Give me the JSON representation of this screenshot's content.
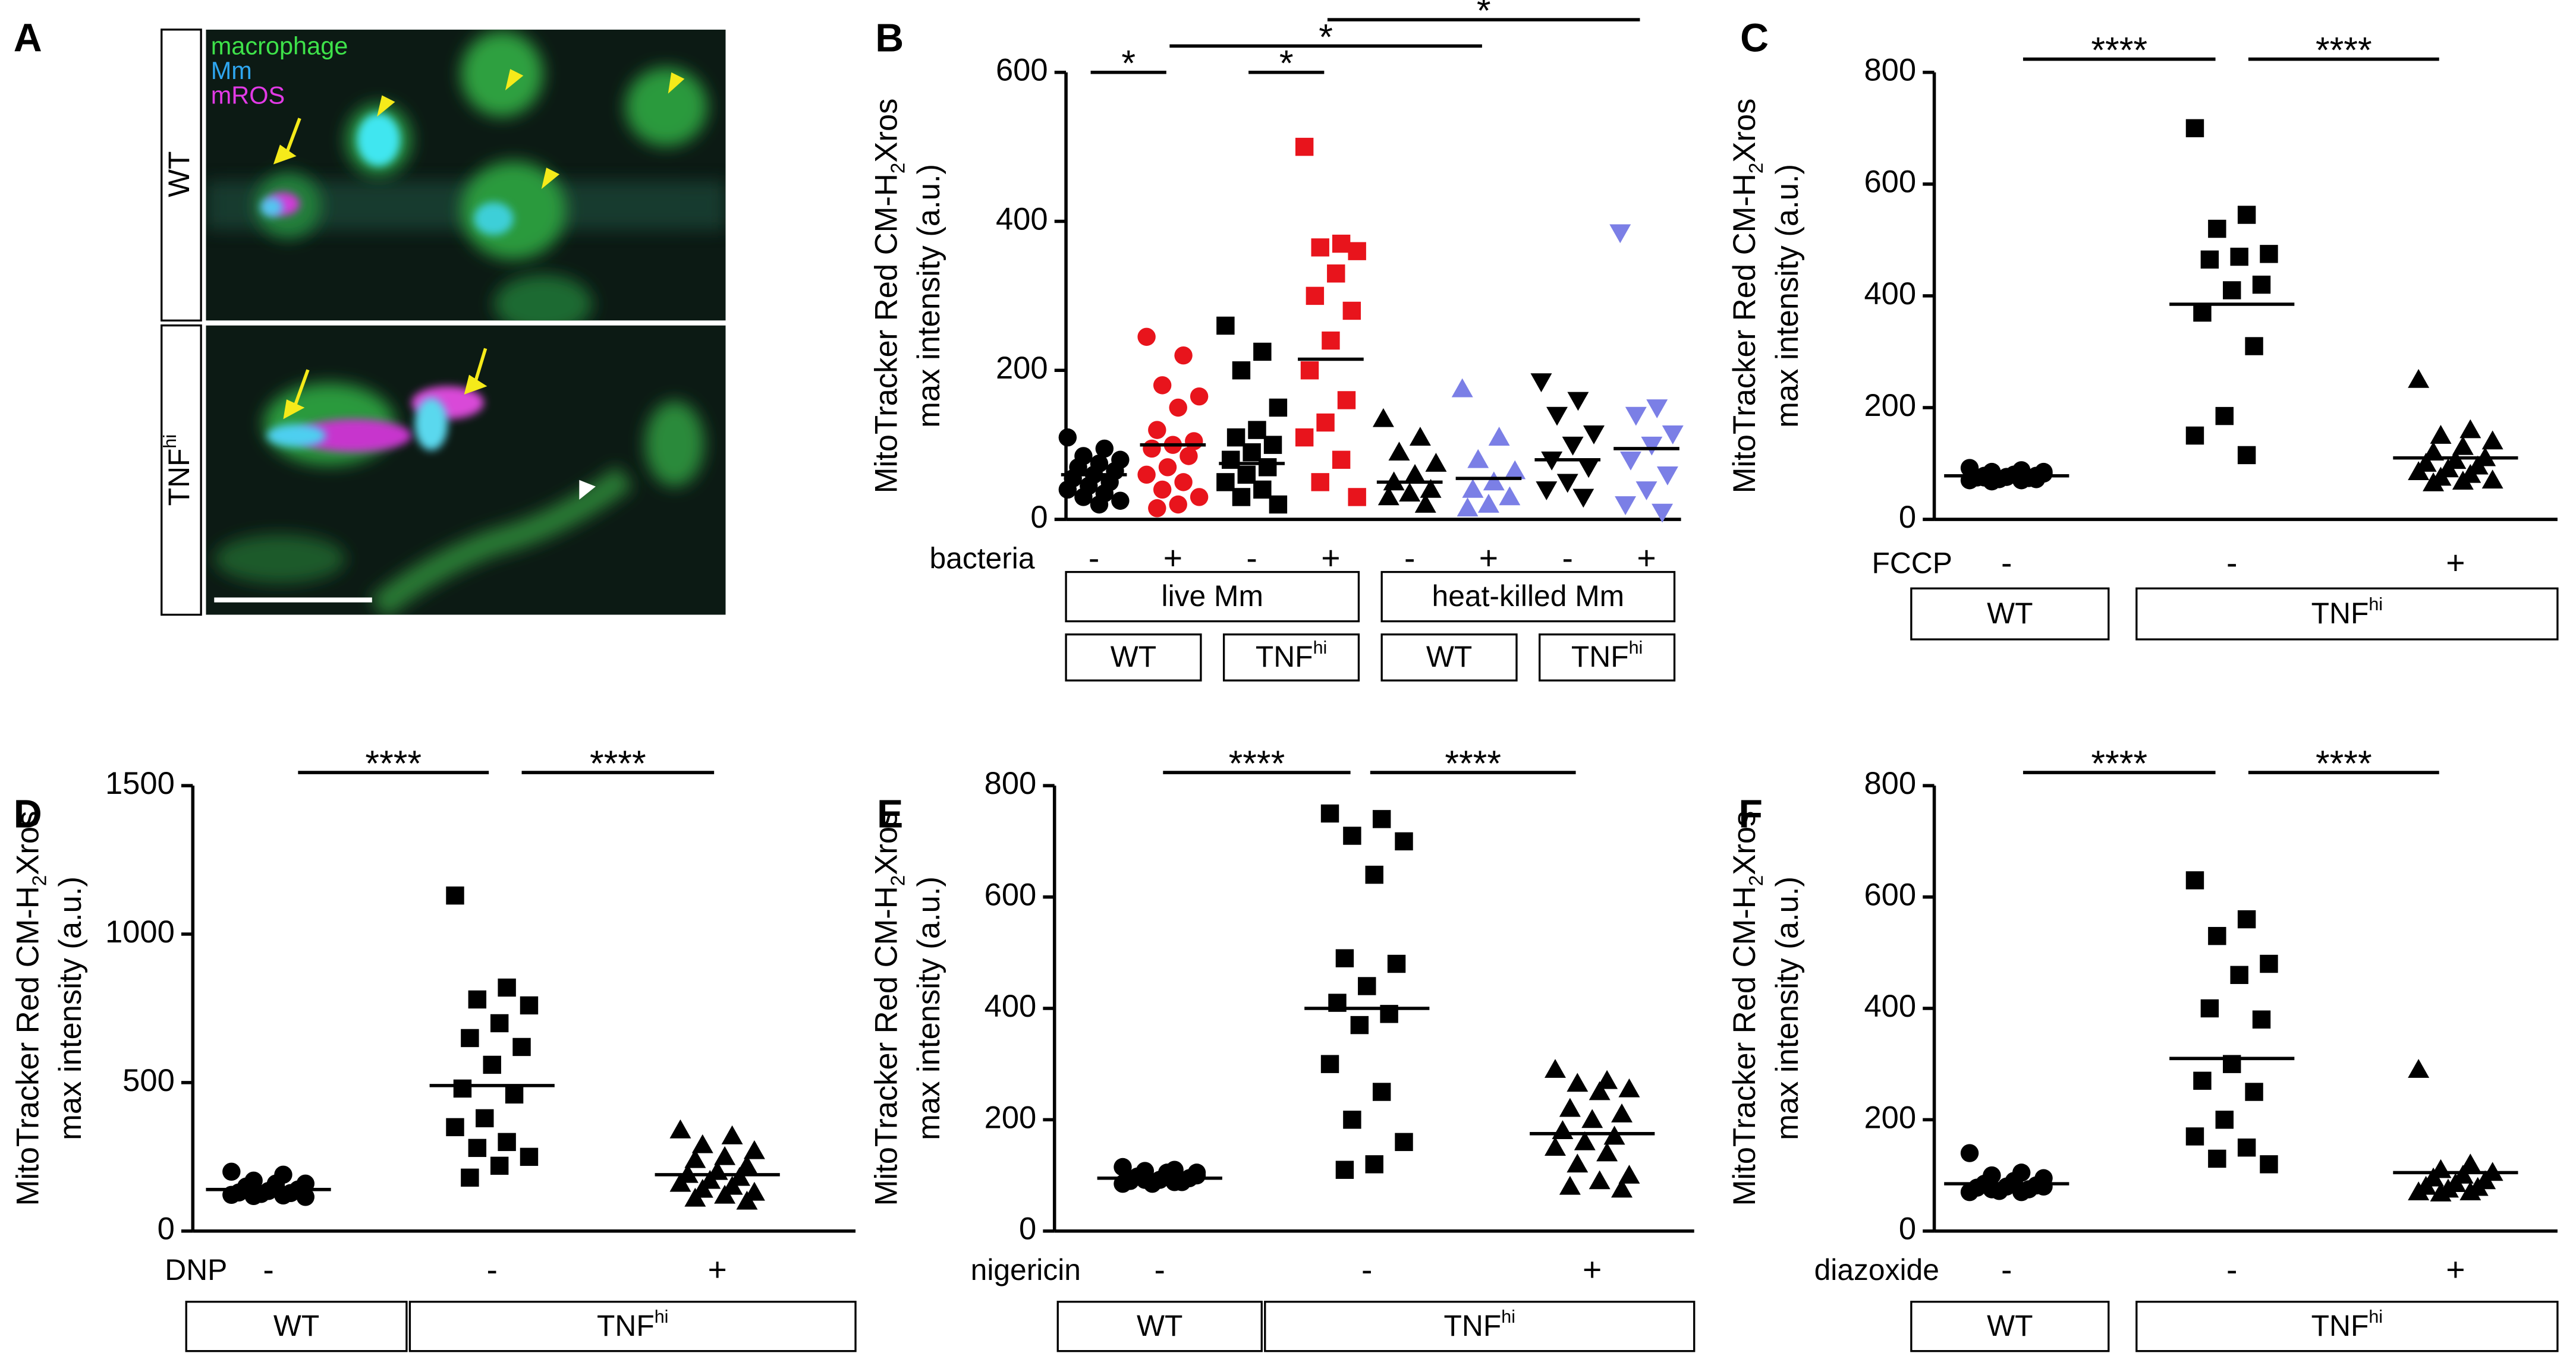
{
  "image_panel": {
    "panel": "A",
    "legend": [
      "macrophage",
      "Mm",
      "mROS"
    ],
    "rows": [
      {
        "label": "WT"
      },
      {
        "label": "TNF",
        "sup": "hi"
      }
    ]
  },
  "chart_data": [
    {
      "type": "dot",
      "panel": "B",
      "ylabel": [
        "MitoTracker Red CM-H",
        "2",
        "Xros",
        "max intensity (a.u.)"
      ],
      "ylim": [
        0,
        600
      ],
      "yticks": [
        0,
        200,
        400,
        600
      ],
      "treatment": {
        "label": "bacteria",
        "values": [
          "-",
          "+",
          "-",
          "+",
          "-",
          "+",
          "-",
          "+"
        ]
      },
      "series": [
        {
          "marker": "circle",
          "color": "#000000",
          "values": [
            110,
            95,
            85,
            80,
            75,
            70,
            65,
            60,
            55,
            50,
            45,
            40,
            35,
            30,
            25,
            20
          ],
          "median": 60
        },
        {
          "marker": "circle",
          "color": "#e8141c",
          "values": [
            245,
            220,
            180,
            165,
            150,
            120,
            105,
            100,
            95,
            85,
            70,
            60,
            50,
            40,
            30,
            20,
            15
          ],
          "median": 100
        },
        {
          "marker": "square",
          "color": "#000000",
          "values": [
            260,
            225,
            200,
            150,
            120,
            110,
            100,
            90,
            80,
            70,
            60,
            50,
            40,
            30,
            20
          ],
          "median": 75
        },
        {
          "marker": "square",
          "color": "#e8141c",
          "values": [
            500,
            370,
            365,
            360,
            330,
            300,
            280,
            240,
            200,
            160,
            130,
            110,
            80,
            50,
            30
          ],
          "median": 215
        },
        {
          "marker": "triangle",
          "color": "#000000",
          "values": [
            135,
            110,
            90,
            75,
            60,
            50,
            40,
            35,
            30,
            20
          ],
          "median": 50
        },
        {
          "marker": "triangle",
          "color": "#7b7fe6",
          "values": [
            175,
            110,
            80,
            65,
            50,
            40,
            30,
            20,
            15
          ],
          "median": 55
        },
        {
          "marker": "triangle-down",
          "color": "#000000",
          "values": [
            185,
            160,
            140,
            115,
            100,
            80,
            70,
            50,
            40,
            30
          ],
          "median": 80
        },
        {
          "marker": "triangle-down",
          "color": "#7b7fe6",
          "values": [
            385,
            150,
            140,
            115,
            100,
            80,
            60,
            40,
            20,
            10
          ],
          "median": 95
        }
      ],
      "significance": [
        {
          "groups": [
            0,
            1
          ],
          "label": "*"
        },
        {
          "groups": [
            2,
            3
          ],
          "label": "*"
        },
        {
          "groups": [
            1,
            5
          ],
          "label": "*"
        },
        {
          "groups": [
            3,
            7
          ],
          "label": "*"
        }
      ],
      "box_rows": [
        [
          {
            "label": "live Mm",
            "groups": [
              0,
              3
            ]
          },
          {
            "label": "heat-killed Mm",
            "groups": [
              4,
              7
            ]
          }
        ],
        [
          {
            "label": "WT",
            "groups": [
              0,
              1
            ]
          },
          {
            "label": "TNF",
            "sup": "hi",
            "groups": [
              2,
              3
            ]
          },
          {
            "label": "WT",
            "groups": [
              4,
              5
            ]
          },
          {
            "label": "TNF",
            "sup": "hi",
            "groups": [
              6,
              7
            ]
          }
        ]
      ]
    },
    {
      "type": "dot",
      "panel": "C",
      "ylabel": [
        "MitoTracker Red CM-H",
        "2",
        "Xros",
        "max intensity (a.u.)"
      ],
      "ylim": [
        0,
        800
      ],
      "yticks": [
        0,
        200,
        400,
        600,
        800
      ],
      "treatment": {
        "label": "FCCP",
        "values": [
          "-",
          "-",
          "+"
        ]
      },
      "series": [
        {
          "marker": "circle",
          "color": "#000000",
          "values": [
            92,
            88,
            85,
            82,
            80,
            78,
            78,
            76,
            75,
            74,
            72,
            70,
            70,
            68,
            85,
            80,
            75,
            72
          ],
          "median": 78
        },
        {
          "marker": "square",
          "color": "#000000",
          "values": [
            700,
            545,
            520,
            475,
            470,
            465,
            420,
            410,
            370,
            310,
            185,
            150,
            115
          ],
          "median": 385
        },
        {
          "marker": "triangle",
          "color": "#000000",
          "values": [
            250,
            160,
            150,
            140,
            130,
            120,
            110,
            105,
            100,
            95,
            90,
            85,
            80,
            75,
            70,
            68,
            65
          ],
          "median": 110
        }
      ],
      "significance": [
        {
          "groups": [
            0,
            1
          ],
          "label": "****"
        },
        {
          "groups": [
            1,
            2
          ],
          "label": "****"
        }
      ],
      "box_rows": [
        [
          {
            "label": "WT",
            "groups": [
              0,
              0
            ]
          },
          {
            "label": "TNF",
            "sup": "hi",
            "groups": [
              1,
              2
            ]
          }
        ]
      ]
    },
    {
      "type": "dot",
      "panel": "D",
      "ylabel": [
        "MitoTracker Red CM-H",
        "2",
        "Xros",
        "max intensity (a.u.)"
      ],
      "ylim": [
        0,
        1500
      ],
      "yticks": [
        0,
        500,
        1000,
        1500
      ],
      "treatment": {
        "label": "DNP",
        "values": [
          "-",
          "-",
          "+"
        ]
      },
      "series": [
        {
          "marker": "circle",
          "color": "#000000",
          "values": [
            200,
            190,
            170,
            160,
            150,
            145,
            140,
            135,
            130,
            128,
            125,
            122,
            120,
            118,
            115,
            160,
            150
          ],
          "median": 140
        },
        {
          "marker": "square",
          "color": "#000000",
          "values": [
            1130,
            820,
            780,
            760,
            700,
            650,
            620,
            560,
            480,
            460,
            380,
            350,
            300,
            280,
            250,
            220,
            180
          ],
          "median": 490
        },
        {
          "marker": "triangle",
          "color": "#000000",
          "values": [
            340,
            320,
            290,
            270,
            250,
            240,
            220,
            200,
            190,
            180,
            170,
            160,
            150,
            140,
            130,
            120,
            110,
            100
          ],
          "median": 190
        }
      ],
      "significance": [
        {
          "groups": [
            0,
            1
          ],
          "label": "****"
        },
        {
          "groups": [
            1,
            2
          ],
          "label": "****"
        }
      ],
      "box_rows": [
        [
          {
            "label": "WT",
            "groups": [
              0,
              0
            ]
          },
          {
            "label": "TNF",
            "sup": "hi",
            "groups": [
              1,
              2
            ]
          }
        ]
      ]
    },
    {
      "type": "dot",
      "panel": "E",
      "ylabel": [
        "MitoTracker Red CM-H",
        "2",
        "Xros",
        "max intensity (a.u.)"
      ],
      "ylim": [
        0,
        800
      ],
      "yticks": [
        0,
        200,
        400,
        600,
        800
      ],
      "treatment": {
        "label": "nigericin",
        "values": [
          "-",
          "-",
          "+"
        ]
      },
      "series": [
        {
          "marker": "circle",
          "color": "#000000",
          "values": [
            115,
            110,
            108,
            105,
            100,
            98,
            95,
            92,
            90,
            88,
            85,
            85,
            88,
            92,
            100,
            105
          ],
          "median": 95
        },
        {
          "marker": "square",
          "color": "#000000",
          "values": [
            750,
            740,
            710,
            700,
            640,
            490,
            480,
            440,
            410,
            390,
            370,
            300,
            250,
            200,
            160,
            120,
            110
          ],
          "median": 400
        },
        {
          "marker": "triangle",
          "color": "#000000",
          "values": [
            290,
            270,
            265,
            255,
            250,
            220,
            210,
            200,
            180,
            170,
            160,
            150,
            140,
            120,
            100,
            90,
            80,
            75
          ],
          "median": 175
        }
      ],
      "significance": [
        {
          "groups": [
            0,
            1
          ],
          "label": "****"
        },
        {
          "groups": [
            1,
            2
          ],
          "label": "****"
        }
      ],
      "box_rows": [
        [
          {
            "label": "WT",
            "groups": [
              0,
              0
            ]
          },
          {
            "label": "TNF",
            "sup": "hi",
            "groups": [
              1,
              2
            ]
          }
        ]
      ]
    },
    {
      "type": "dot",
      "panel": "F",
      "ylabel": [
        "MitoTracker Red CM-H",
        "2",
        "Xros",
        "max intensity (a.u.)"
      ],
      "ylim": [
        0,
        800
      ],
      "yticks": [
        0,
        200,
        400,
        600,
        800
      ],
      "treatment": {
        "label": "diazoxide",
        "values": [
          "-",
          "-",
          "+"
        ]
      },
      "series": [
        {
          "marker": "circle",
          "color": "#000000",
          "values": [
            140,
            105,
            100,
            95,
            90,
            85,
            82,
            80,
            78,
            75,
            72,
            70,
            70,
            75,
            80,
            85
          ],
          "median": 85
        },
        {
          "marker": "square",
          "color": "#000000",
          "values": [
            630,
            560,
            530,
            480,
            460,
            400,
            380,
            300,
            270,
            250,
            200,
            170,
            150,
            130,
            120
          ],
          "median": 310
        },
        {
          "marker": "triangle",
          "color": "#000000",
          "values": [
            290,
            120,
            110,
            105,
            100,
            95,
            90,
            85,
            80,
            78,
            75,
            70,
            70,
            68
          ],
          "median": 105
        }
      ],
      "significance": [
        {
          "groups": [
            0,
            1
          ],
          "label": "****"
        },
        {
          "groups": [
            1,
            2
          ],
          "label": "****"
        }
      ],
      "box_rows": [
        [
          {
            "label": "WT",
            "groups": [
              0,
              0
            ]
          },
          {
            "label": "TNF",
            "sup": "hi",
            "groups": [
              1,
              2
            ]
          }
        ]
      ]
    }
  ]
}
